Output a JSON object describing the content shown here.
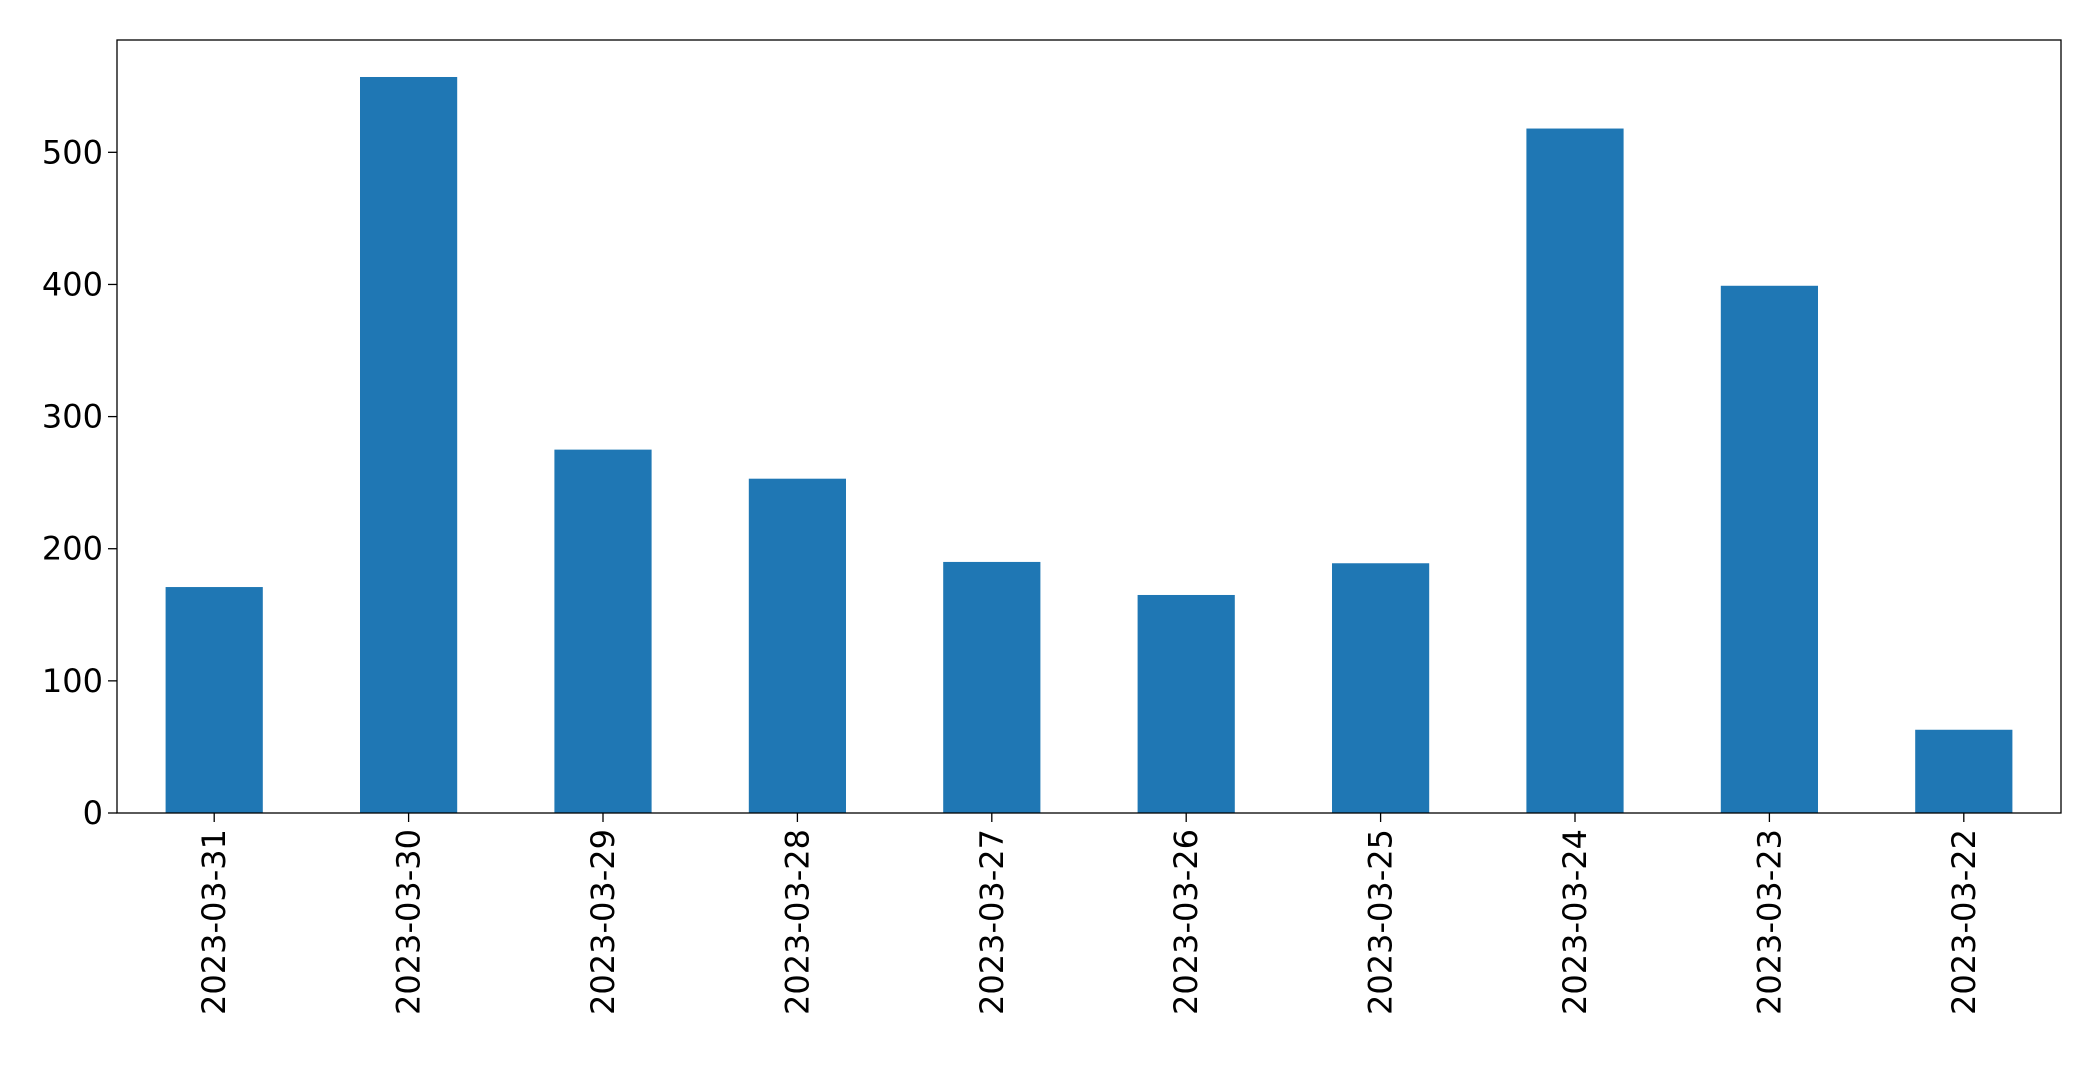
{
  "chart_data": {
    "type": "bar",
    "title": "",
    "xlabel": "",
    "ylabel": "",
    "categories": [
      "2023-03-31",
      "2023-03-30",
      "2023-03-29",
      "2023-03-28",
      "2023-03-27",
      "2023-03-26",
      "2023-03-25",
      "2023-03-24",
      "2023-03-23",
      "2023-03-22"
    ],
    "values": [
      171,
      557,
      275,
      253,
      190,
      165,
      189,
      518,
      399,
      63
    ],
    "ylim": [
      0,
      585
    ],
    "yticks": [
      0,
      100,
      200,
      300,
      400,
      500
    ],
    "ytick_labels": [
      "0",
      "100",
      "200",
      "300",
      "400",
      "500"
    ],
    "bar_color": "#1f77b4",
    "grid": false,
    "legend": "none"
  }
}
